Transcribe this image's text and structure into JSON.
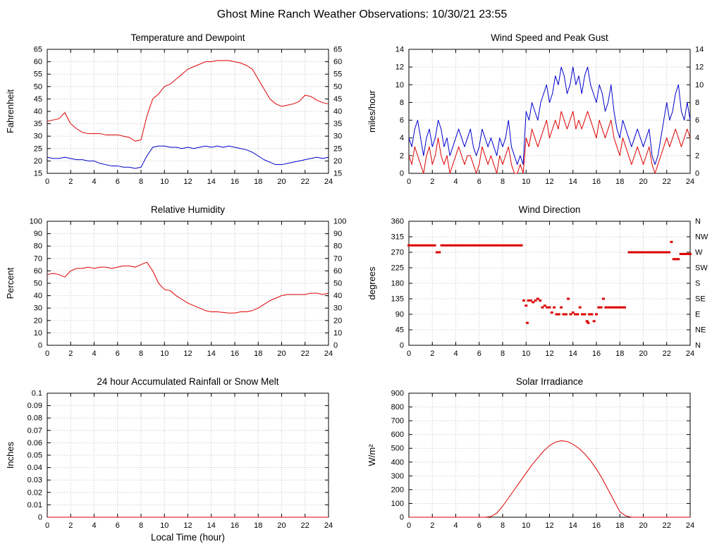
{
  "page": {
    "title": "Ghost Mine Ranch Weather Observations: 10/30/21 23:55"
  },
  "chart_data": [
    {
      "id": "temperature-dewpoint",
      "type": "line",
      "title": "Temperature and Dewpoint",
      "ylabel": "Fahrenheit",
      "xlim": [
        0,
        24
      ],
      "ylim": [
        15,
        65
      ],
      "xticks": [
        0,
        2,
        4,
        6,
        8,
        10,
        12,
        14,
        16,
        18,
        20,
        22,
        24
      ],
      "yticks": [
        15,
        20,
        25,
        30,
        35,
        40,
        45,
        50,
        55,
        60,
        65
      ],
      "right_labels": "mirror",
      "grid": true,
      "series": [
        {
          "name": "Temperature",
          "color": "#dd0000",
          "x_start": 0,
          "x_step": 0.5,
          "values": [
            36,
            36.5,
            37,
            39.5,
            35,
            33,
            31.5,
            31,
            31,
            31,
            30.5,
            30.5,
            30.5,
            30,
            29.5,
            28,
            28.5,
            38,
            45,
            47,
            50,
            51,
            53,
            55,
            57,
            58,
            59,
            60,
            60,
            60.5,
            60.5,
            60.5,
            60,
            59.5,
            58.5,
            57,
            53,
            49,
            45,
            43,
            42,
            42.5,
            43,
            44,
            46.5,
            46,
            44.5,
            43.5,
            43
          ]
        },
        {
          "name": "Dewpoint",
          "color": "#0000cc",
          "x_start": 0,
          "x_step": 0.5,
          "values": [
            21.5,
            21,
            21,
            21.5,
            21,
            20.5,
            20.5,
            20,
            20,
            19,
            18.5,
            18,
            18,
            17.5,
            17.5,
            17,
            17.5,
            22,
            25.5,
            26,
            26,
            25.5,
            25.5,
            25,
            25.5,
            25,
            25.5,
            26,
            25.5,
            26,
            25.5,
            26,
            25.5,
            25,
            24.5,
            23.5,
            22,
            20.5,
            19.5,
            18.5,
            18.5,
            19,
            19.5,
            20,
            20.5,
            21,
            21.5,
            21,
            21.5
          ]
        }
      ]
    },
    {
      "id": "wind-speed-peak-gust",
      "type": "line",
      "title": "Wind Speed and Peak Gust",
      "ylabel": "miles/hour",
      "xlim": [
        0,
        24
      ],
      "ylim": [
        0,
        14
      ],
      "xticks": [
        0,
        2,
        4,
        6,
        8,
        10,
        12,
        14,
        16,
        18,
        20,
        22,
        24
      ],
      "yticks": [
        0,
        2,
        4,
        6,
        8,
        10,
        12,
        14
      ],
      "right_labels": "mirror",
      "grid": true,
      "series": [
        {
          "name": "Peak Gust",
          "color": "#0000cc",
          "x_start": 0,
          "x_step": 0.25,
          "values": [
            4,
            3,
            5,
            6,
            4,
            2,
            4,
            5,
            3,
            4,
            6,
            5,
            3,
            4,
            2,
            3,
            4,
            5,
            4,
            3,
            4,
            5,
            3,
            2,
            3,
            5,
            4,
            3,
            4,
            3,
            2,
            4,
            3,
            4,
            6,
            3,
            2,
            1,
            2,
            1,
            7,
            6,
            8,
            7,
            6,
            8,
            9,
            10,
            8,
            9,
            11,
            10,
            12,
            11,
            9,
            10,
            12,
            10,
            11,
            9,
            11,
            12,
            10,
            9,
            8,
            10,
            9,
            7,
            8,
            10,
            7,
            5,
            4,
            6,
            5,
            4,
            3,
            4,
            5,
            4,
            3,
            4,
            5,
            2,
            1,
            2,
            4,
            6,
            8,
            6,
            7,
            9,
            10,
            7,
            6,
            8,
            6
          ]
        },
        {
          "name": "Wind Speed",
          "color": "#dd0000",
          "x_start": 0,
          "x_step": 0.25,
          "values": [
            2,
            1,
            3,
            2,
            1,
            0,
            2,
            3,
            1,
            2,
            4,
            2,
            1,
            2,
            0,
            1,
            2,
            3,
            2,
            1,
            2,
            2,
            1,
            0,
            1,
            3,
            2,
            1,
            2,
            1,
            0,
            2,
            1,
            2,
            3,
            1,
            0,
            0,
            1,
            0,
            4,
            3,
            5,
            4,
            3,
            4,
            5,
            6,
            4,
            5,
            6,
            5,
            7,
            6,
            5,
            6,
            7,
            5,
            6,
            5,
            6,
            7,
            6,
            5,
            4,
            6,
            5,
            4,
            5,
            6,
            4,
            3,
            2,
            4,
            3,
            2,
            1,
            2,
            3,
            2,
            1,
            2,
            3,
            1,
            0,
            1,
            2,
            3,
            4,
            3,
            4,
            5,
            4,
            3,
            4,
            5,
            4
          ]
        }
      ]
    },
    {
      "id": "relative-humidity",
      "type": "line",
      "title": "Relative Humidity",
      "ylabel": "Percent",
      "xlim": [
        0,
        24
      ],
      "ylim": [
        0,
        100
      ],
      "xticks": [
        0,
        2,
        4,
        6,
        8,
        10,
        12,
        14,
        16,
        18,
        20,
        22,
        24
      ],
      "yticks": [
        0,
        10,
        20,
        30,
        40,
        50,
        60,
        70,
        80,
        90,
        100
      ],
      "right_labels": "mirror",
      "grid": true,
      "series": [
        {
          "name": "Relative Humidity",
          "color": "#dd0000",
          "x_start": 0,
          "x_step": 0.5,
          "values": [
            57,
            58,
            57,
            55,
            60,
            62,
            62,
            63,
            62,
            63,
            63,
            62,
            63,
            64,
            64,
            63,
            65,
            67,
            60,
            50,
            45,
            44,
            40,
            37,
            34,
            32,
            30,
            28,
            27,
            27,
            26.5,
            26,
            26,
            27,
            27,
            28,
            30,
            33,
            36,
            38,
            40,
            41,
            41,
            41,
            41,
            42,
            42,
            41,
            42
          ]
        }
      ]
    },
    {
      "id": "wind-direction",
      "type": "scatter",
      "title": "Wind Direction",
      "ylabel": "degrees",
      "xlim": [
        0,
        24
      ],
      "ylim": [
        0,
        360
      ],
      "xticks": [
        0,
        2,
        4,
        6,
        8,
        10,
        12,
        14,
        16,
        18,
        20,
        22,
        24
      ],
      "yticks": [
        0,
        45,
        90,
        135,
        180,
        225,
        270,
        315,
        360
      ],
      "right_labels": [
        "N",
        "NE",
        "E",
        "SE",
        "S",
        "SW",
        "W",
        "NW",
        "N"
      ],
      "grid": true,
      "series": [
        {
          "name": "Wind Direction",
          "color": "#dd0000",
          "points": [
            [
              0,
              290
            ],
            [
              0.2,
              290
            ],
            [
              0.4,
              290
            ],
            [
              0.6,
              290
            ],
            [
              0.8,
              290
            ],
            [
              1,
              290
            ],
            [
              1.2,
              290
            ],
            [
              1.4,
              290
            ],
            [
              1.6,
              290
            ],
            [
              1.8,
              290
            ],
            [
              2,
              290
            ],
            [
              2.2,
              290
            ],
            [
              2.4,
              270
            ],
            [
              2.6,
              270
            ],
            [
              2.8,
              290
            ],
            [
              3,
              290
            ],
            [
              3.2,
              290
            ],
            [
              3.4,
              290
            ],
            [
              3.6,
              290
            ],
            [
              3.8,
              290
            ],
            [
              4,
              290
            ],
            [
              4.2,
              290
            ],
            [
              4.4,
              290
            ],
            [
              4.6,
              290
            ],
            [
              4.8,
              290
            ],
            [
              5,
              290
            ],
            [
              5.2,
              290
            ],
            [
              5.4,
              290
            ],
            [
              5.6,
              290
            ],
            [
              5.8,
              290
            ],
            [
              6,
              290
            ],
            [
              6.2,
              290
            ],
            [
              6.4,
              290
            ],
            [
              6.6,
              290
            ],
            [
              6.8,
              290
            ],
            [
              7,
              290
            ],
            [
              7.2,
              290
            ],
            [
              7.4,
              290
            ],
            [
              7.6,
              290
            ],
            [
              7.8,
              290
            ],
            [
              8,
              290
            ],
            [
              8.2,
              290
            ],
            [
              8.4,
              290
            ],
            [
              8.6,
              290
            ],
            [
              8.8,
              290
            ],
            [
              9,
              290
            ],
            [
              9.2,
              290
            ],
            [
              9.4,
              290
            ],
            [
              9.6,
              290
            ],
            [
              9.8,
              130
            ],
            [
              10,
              115
            ],
            [
              10.1,
              65
            ],
            [
              10.2,
              130
            ],
            [
              10.4,
              130
            ],
            [
              10.6,
              125
            ],
            [
              10.8,
              130
            ],
            [
              11,
              135
            ],
            [
              11.2,
              130
            ],
            [
              11.4,
              110
            ],
            [
              11.6,
              115
            ],
            [
              11.8,
              110
            ],
            [
              12,
              110
            ],
            [
              12.2,
              95
            ],
            [
              12.4,
              110
            ],
            [
              12.6,
              90
            ],
            [
              12.8,
              90
            ],
            [
              13,
              110
            ],
            [
              13.2,
              90
            ],
            [
              13.4,
              90
            ],
            [
              13.6,
              135
            ],
            [
              13.8,
              90
            ],
            [
              14,
              95
            ],
            [
              14.2,
              90
            ],
            [
              14.4,
              90
            ],
            [
              14.6,
              110
            ],
            [
              14.8,
              90
            ],
            [
              15,
              90
            ],
            [
              15.2,
              70
            ],
            [
              15.3,
              65
            ],
            [
              15.4,
              90
            ],
            [
              15.6,
              90
            ],
            [
              15.8,
              70
            ],
            [
              16,
              90
            ],
            [
              16.2,
              110
            ],
            [
              16.4,
              110
            ],
            [
              16.6,
              135
            ],
            [
              16.8,
              110
            ],
            [
              17,
              110
            ],
            [
              17.2,
              110
            ],
            [
              17.4,
              110
            ],
            [
              17.6,
              110
            ],
            [
              17.8,
              110
            ],
            [
              18,
              110
            ],
            [
              18.2,
              110
            ],
            [
              18.4,
              110
            ],
            [
              18.8,
              270
            ],
            [
              19,
              270
            ],
            [
              19.2,
              270
            ],
            [
              19.4,
              270
            ],
            [
              19.6,
              270
            ],
            [
              19.8,
              270
            ],
            [
              20,
              270
            ],
            [
              20.2,
              270
            ],
            [
              20.4,
              270
            ],
            [
              20.6,
              270
            ],
            [
              20.8,
              270
            ],
            [
              21,
              270
            ],
            [
              21.2,
              270
            ],
            [
              21.4,
              270
            ],
            [
              21.6,
              270
            ],
            [
              21.8,
              270
            ],
            [
              22,
              270
            ],
            [
              22.2,
              270
            ],
            [
              22.4,
              300
            ],
            [
              22.6,
              250
            ],
            [
              22.8,
              250
            ],
            [
              23,
              250
            ],
            [
              23.2,
              265
            ],
            [
              23.4,
              265
            ],
            [
              23.6,
              265
            ],
            [
              23.8,
              265
            ],
            [
              24,
              265
            ]
          ]
        }
      ]
    },
    {
      "id": "accumulated-rainfall",
      "type": "line",
      "title": "24 hour Accumulated Rainfall or Snow Melt",
      "ylabel": "Inches",
      "xlabel": "Local Time (hour)",
      "xlim": [
        0,
        24
      ],
      "ylim": [
        0,
        0.1
      ],
      "xticks": [
        0,
        2,
        4,
        6,
        8,
        10,
        12,
        14,
        16,
        18,
        20,
        22,
        24
      ],
      "yticks": [
        0,
        0.01,
        0.02,
        0.03,
        0.04,
        0.05,
        0.06,
        0.07,
        0.08,
        0.09,
        0.1
      ],
      "right_labels": null,
      "grid": true,
      "series": [
        {
          "name": "Rainfall",
          "color": "#dd0000",
          "x_start": 0,
          "x_step": 24,
          "values": [
            0,
            0
          ]
        }
      ]
    },
    {
      "id": "solar-irradiance",
      "type": "line",
      "title": "Solar Irradiance",
      "ylabel": "W/m²",
      "xlim": [
        0,
        24
      ],
      "ylim": [
        0,
        900
      ],
      "xticks": [
        0,
        2,
        4,
        6,
        8,
        10,
        12,
        14,
        16,
        18,
        20,
        22,
        24
      ],
      "yticks": [
        0,
        100,
        200,
        300,
        400,
        500,
        600,
        700,
        800,
        900
      ],
      "right_labels": null,
      "grid": true,
      "series": [
        {
          "name": "Solar Irradiance",
          "color": "#dd0000",
          "x_start": 0,
          "x_step": 0.5,
          "values": [
            0,
            0,
            0,
            0,
            0,
            0,
            0,
            0,
            0,
            0,
            0,
            0,
            0,
            0,
            5,
            30,
            80,
            140,
            200,
            260,
            320,
            380,
            430,
            480,
            520,
            545,
            555,
            550,
            530,
            500,
            460,
            410,
            350,
            280,
            200,
            120,
            40,
            10,
            0,
            0,
            0,
            0,
            0,
            0,
            0,
            0,
            0,
            0,
            0
          ]
        }
      ]
    }
  ]
}
